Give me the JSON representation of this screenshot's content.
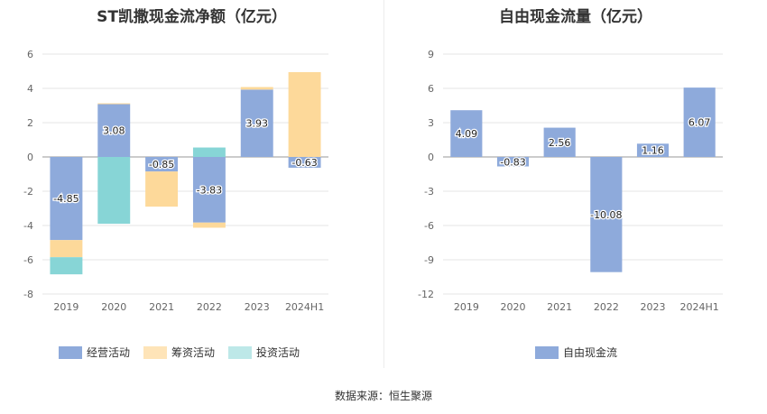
{
  "source_text": "数据来源：恒生聚源",
  "chart_data": [
    {
      "type": "bar",
      "stacked": true,
      "title": "ST凯撒现金流净额（亿元）",
      "categories": [
        "2019",
        "2020",
        "2021",
        "2022",
        "2023",
        "2024H1"
      ],
      "ylim": [
        -8,
        6
      ],
      "yticks": [
        -8,
        -6,
        -4,
        -2,
        0,
        2,
        4,
        6
      ],
      "grid": true,
      "legend_position": "bottom",
      "series": [
        {
          "name": "经营活动",
          "color": "#8eaadb",
          "values": [
            -4.85,
            3.08,
            -0.85,
            -3.83,
            3.93,
            -0.63
          ],
          "labels": [
            "-4.85",
            "3.08",
            "-0.85",
            "-3.83",
            "3.93",
            "-0.63"
          ]
        },
        {
          "name": "筹资活动",
          "color": "#fdd99a",
          "values": [
            -1.0,
            0.05,
            -2.05,
            -0.3,
            0.15,
            4.95
          ]
        },
        {
          "name": "投资活动",
          "color": "#87d5d6",
          "values": [
            -1.0,
            -3.9,
            0,
            0.55,
            0,
            0
          ]
        }
      ]
    },
    {
      "type": "bar",
      "title": "自由现金流量（亿元）",
      "categories": [
        "2019",
        "2020",
        "2021",
        "2022",
        "2023",
        "2024H1"
      ],
      "ylim": [
        -12,
        9
      ],
      "yticks": [
        -12,
        -9,
        -6,
        -3,
        0,
        3,
        6,
        9
      ],
      "grid": true,
      "legend_position": "bottom",
      "series": [
        {
          "name": "自由现金流",
          "color": "#8eaadb",
          "values": [
            4.09,
            -0.83,
            2.56,
            -10.08,
            1.16,
            6.07
          ],
          "labels": [
            "4.09",
            "-0.83",
            "2.56",
            "-10.08",
            "1.16",
            "6.07"
          ]
        }
      ]
    }
  ]
}
